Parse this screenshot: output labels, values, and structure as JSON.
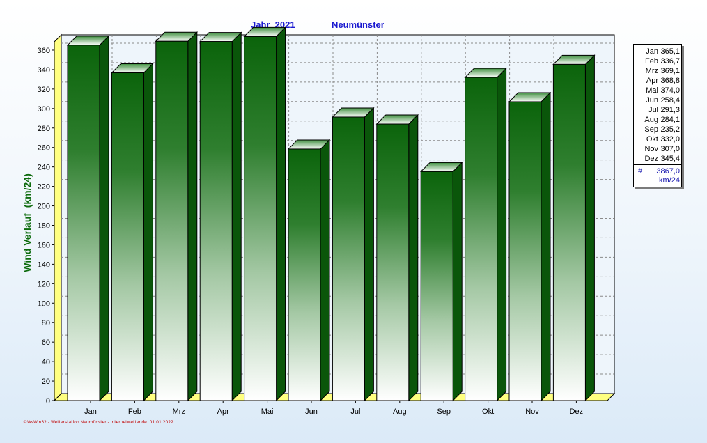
{
  "header": {
    "year_label": "Jahr  2021",
    "station_label": "Neumünster"
  },
  "footer": {
    "credit": "©WsWin32 - Wetterstation Neumünster - Internetwetter.de  01.01.2022"
  },
  "legend": {
    "rows": [
      {
        "name": "Jan",
        "value": "365,1"
      },
      {
        "name": "Feb",
        "value": "336,7"
      },
      {
        "name": "Mrz",
        "value": "369,1"
      },
      {
        "name": "Apr",
        "value": "368,8"
      },
      {
        "name": "Mai",
        "value": "374,0"
      },
      {
        "name": "Jun",
        "value": "258,4"
      },
      {
        "name": "Jul",
        "value": "291,3"
      },
      {
        "name": "Aug",
        "value": "284,1"
      },
      {
        "name": "Sep",
        "value": "235,2"
      },
      {
        "name": "Okt",
        "value": "332,0"
      },
      {
        "name": "Nov",
        "value": "307,0"
      },
      {
        "name": "Dez",
        "value": "345,4"
      }
    ],
    "total_symbol": "#",
    "total_value": "3867,0",
    "total_unit": "km/24"
  },
  "chart_data": {
    "type": "bar",
    "title": "Jahr  2021",
    "subtitle": "Neumünster",
    "xlabel": "",
    "ylabel": "Wind Verlauf  (km/24)",
    "categories": [
      "Jan",
      "Feb",
      "Mrz",
      "Apr",
      "Mai",
      "Jun",
      "Jul",
      "Aug",
      "Sep",
      "Okt",
      "Nov",
      "Dez"
    ],
    "values": [
      365.1,
      336.7,
      369.1,
      368.8,
      374.0,
      258.4,
      291.3,
      284.1,
      235.2,
      332.0,
      307.0,
      345.4
    ],
    "ylim": [
      0,
      370
    ],
    "yticks": [
      0,
      20,
      40,
      60,
      80,
      100,
      120,
      140,
      160,
      180,
      200,
      220,
      240,
      260,
      280,
      300,
      320,
      340,
      360
    ],
    "grid": true,
    "legend_position": "right",
    "colors": {
      "bar_top": "#0b640b",
      "bar_bottom": "#ffffff",
      "side": "#0a560a",
      "cap": "#e6f2e6",
      "floor": "#ffff80"
    }
  }
}
